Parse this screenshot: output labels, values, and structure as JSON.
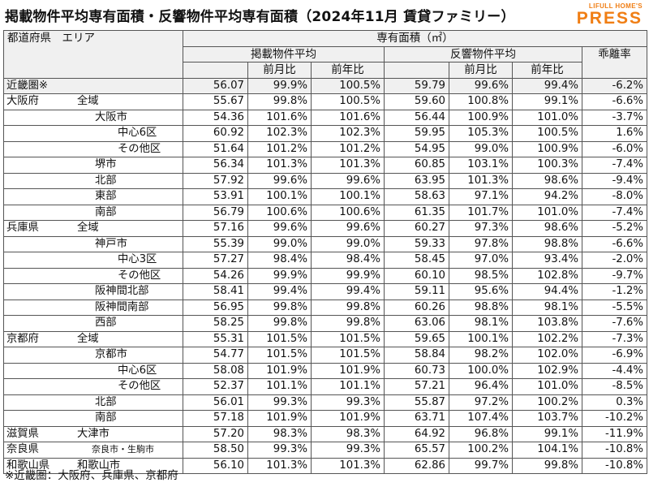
{
  "title": "掲載物件平均専有面積・反響物件平均専有面積（2024年11月 賃貸ファミリー）",
  "logo": {
    "line1": "LIFULL HOME'S",
    "line2": "PRESS"
  },
  "header": {
    "col_region": "都道府県　エリア",
    "col_area": "専有面積（㎡）",
    "listing_avg": "掲載物件平均",
    "response_avg": "反響物件平均",
    "divergence": "乖離率",
    "mom": "前月比",
    "yoy": "前年比"
  },
  "rows": [
    {
      "pref": "近畿圏※",
      "area": "",
      "indent": 0,
      "l": "56.07",
      "lm": "99.9%",
      "ly": "100.5%",
      "r": "59.79",
      "rm": "99.6%",
      "ry": "99.4%",
      "d": "-6.2%",
      "region": true
    },
    {
      "pref": "大阪府",
      "area": "全域",
      "indent": 0,
      "l": "55.67",
      "lm": "99.8%",
      "ly": "100.5%",
      "r": "59.60",
      "rm": "100.8%",
      "ry": "99.1%",
      "d": "-6.6%",
      "region": false
    },
    {
      "pref": "",
      "area": "大阪市",
      "indent": 1,
      "l": "54.36",
      "lm": "101.6%",
      "ly": "101.6%",
      "r": "56.44",
      "rm": "100.9%",
      "ry": "101.0%",
      "d": "-3.7%",
      "region": false
    },
    {
      "pref": "",
      "area": "中心6区",
      "indent": 2,
      "l": "60.92",
      "lm": "102.3%",
      "ly": "102.3%",
      "r": "59.95",
      "rm": "105.3%",
      "ry": "100.5%",
      "d": "1.6%",
      "region": false
    },
    {
      "pref": "",
      "area": "その他区",
      "indent": 2,
      "l": "51.64",
      "lm": "101.2%",
      "ly": "101.2%",
      "r": "54.95",
      "rm": "99.0%",
      "ry": "100.9%",
      "d": "-6.0%",
      "region": false
    },
    {
      "pref": "",
      "area": "堺市",
      "indent": 1,
      "l": "56.34",
      "lm": "101.3%",
      "ly": "101.3%",
      "r": "60.85",
      "rm": "103.1%",
      "ry": "100.3%",
      "d": "-7.4%",
      "region": false
    },
    {
      "pref": "",
      "area": "北部",
      "indent": 1,
      "l": "57.92",
      "lm": "99.6%",
      "ly": "99.6%",
      "r": "63.95",
      "rm": "101.3%",
      "ry": "98.6%",
      "d": "-9.4%",
      "region": false
    },
    {
      "pref": "",
      "area": "東部",
      "indent": 1,
      "l": "53.91",
      "lm": "100.1%",
      "ly": "100.1%",
      "r": "58.63",
      "rm": "97.1%",
      "ry": "94.2%",
      "d": "-8.0%",
      "region": false
    },
    {
      "pref": "",
      "area": "南部",
      "indent": 1,
      "l": "56.79",
      "lm": "100.6%",
      "ly": "100.6%",
      "r": "61.35",
      "rm": "101.7%",
      "ry": "101.0%",
      "d": "-7.4%",
      "region": false
    },
    {
      "pref": "兵庫県",
      "area": "全域",
      "indent": 0,
      "l": "57.16",
      "lm": "99.6%",
      "ly": "99.6%",
      "r": "60.27",
      "rm": "97.3%",
      "ry": "98.6%",
      "d": "-5.2%",
      "region": false
    },
    {
      "pref": "",
      "area": "神戸市",
      "indent": 1,
      "l": "55.39",
      "lm": "99.0%",
      "ly": "99.0%",
      "r": "59.33",
      "rm": "97.8%",
      "ry": "98.8%",
      "d": "-6.6%",
      "region": false
    },
    {
      "pref": "",
      "area": "中心3区",
      "indent": 2,
      "l": "57.27",
      "lm": "98.4%",
      "ly": "98.4%",
      "r": "58.45",
      "rm": "97.0%",
      "ry": "93.4%",
      "d": "-2.0%",
      "region": false
    },
    {
      "pref": "",
      "area": "その他区",
      "indent": 2,
      "l": "54.26",
      "lm": "99.9%",
      "ly": "99.9%",
      "r": "60.10",
      "rm": "98.5%",
      "ry": "102.8%",
      "d": "-9.7%",
      "region": false
    },
    {
      "pref": "",
      "area": "阪神間北部",
      "indent": 1,
      "l": "58.41",
      "lm": "99.4%",
      "ly": "99.4%",
      "r": "59.11",
      "rm": "95.6%",
      "ry": "94.4%",
      "d": "-1.2%",
      "region": false
    },
    {
      "pref": "",
      "area": "阪神間南部",
      "indent": 1,
      "l": "56.95",
      "lm": "99.8%",
      "ly": "99.8%",
      "r": "60.26",
      "rm": "98.8%",
      "ry": "98.1%",
      "d": "-5.5%",
      "region": false
    },
    {
      "pref": "",
      "area": "西部",
      "indent": 1,
      "l": "58.25",
      "lm": "99.8%",
      "ly": "99.8%",
      "r": "63.06",
      "rm": "98.1%",
      "ry": "103.8%",
      "d": "-7.6%",
      "region": false
    },
    {
      "pref": "京都府",
      "area": "全域",
      "indent": 0,
      "l": "55.31",
      "lm": "101.5%",
      "ly": "101.5%",
      "r": "59.65",
      "rm": "100.1%",
      "ry": "102.2%",
      "d": "-7.3%",
      "region": false
    },
    {
      "pref": "",
      "area": "京都市",
      "indent": 1,
      "l": "54.77",
      "lm": "101.5%",
      "ly": "101.5%",
      "r": "58.84",
      "rm": "98.2%",
      "ry": "102.0%",
      "d": "-6.9%",
      "region": false
    },
    {
      "pref": "",
      "area": "中心6区",
      "indent": 2,
      "l": "58.08",
      "lm": "101.9%",
      "ly": "101.9%",
      "r": "60.73",
      "rm": "100.0%",
      "ry": "102.9%",
      "d": "-4.4%",
      "region": false
    },
    {
      "pref": "",
      "area": "その他区",
      "indent": 2,
      "l": "52.37",
      "lm": "101.1%",
      "ly": "101.1%",
      "r": "57.21",
      "rm": "96.4%",
      "ry": "101.0%",
      "d": "-8.5%",
      "region": false
    },
    {
      "pref": "",
      "area": "北部",
      "indent": 1,
      "l": "56.01",
      "lm": "99.3%",
      "ly": "99.3%",
      "r": "55.87",
      "rm": "97.2%",
      "ry": "100.2%",
      "d": "0.3%",
      "region": false
    },
    {
      "pref": "",
      "area": "南部",
      "indent": 1,
      "l": "57.18",
      "lm": "101.9%",
      "ly": "101.9%",
      "r": "63.71",
      "rm": "107.4%",
      "ry": "103.7%",
      "d": "-10.2%",
      "region": false
    },
    {
      "pref": "滋賀県",
      "area": "大津市",
      "indent": 0,
      "l": "57.20",
      "lm": "98.3%",
      "ly": "98.3%",
      "r": "64.92",
      "rm": "96.8%",
      "ry": "99.1%",
      "d": "-11.9%",
      "region": false
    },
    {
      "pref": "奈良県",
      "area": "奈良市・生駒市",
      "indent": 0,
      "small": true,
      "l": "58.50",
      "lm": "99.3%",
      "ly": "99.3%",
      "r": "65.57",
      "rm": "100.2%",
      "ry": "104.1%",
      "d": "-10.8%",
      "region": false
    },
    {
      "pref": "和歌山県",
      "area": "和歌山市",
      "indent": 0,
      "l": "56.10",
      "lm": "101.3%",
      "ly": "101.3%",
      "r": "62.86",
      "rm": "99.7%",
      "ry": "99.8%",
      "d": "-10.8%",
      "region": false
    }
  ],
  "footnote": "※近畿圏：大阪府、兵庫県、京都府"
}
